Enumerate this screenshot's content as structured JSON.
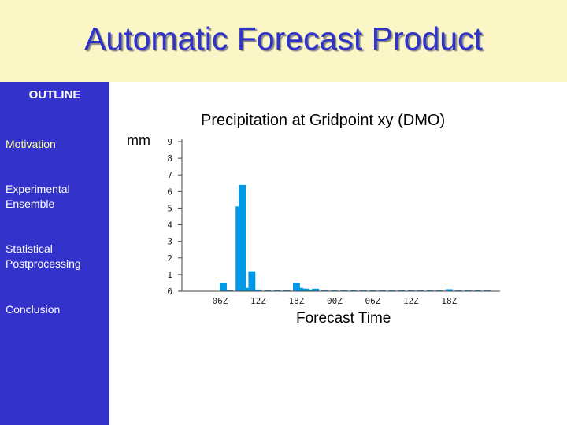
{
  "slide": {
    "title": "Automatic Forecast Product"
  },
  "sidebar": {
    "heading": "OUTLINE",
    "items": [
      {
        "label": "Motivation",
        "active": true
      },
      {
        "label": "Experimental Ensemble",
        "active": false
      },
      {
        "label": "Statistical Postprocessing",
        "active": false
      },
      {
        "label": "Conclusion",
        "active": false
      }
    ]
  },
  "colors": {
    "title_bg": "#fbf6c6",
    "title_text": "#3033c9",
    "sidebar_bg": "#3333cc",
    "active_item": "#ffff99",
    "inactive_item": "#ffffff",
    "bar": "#0099e6"
  },
  "chart_data": {
    "type": "bar",
    "title": "Precipitation at Gridpoint xy (DMO)",
    "ylabel": "mm",
    "xlabel": "Forecast Time",
    "ylim": [
      0,
      9
    ],
    "yticks": [
      0,
      1,
      2,
      3,
      4,
      5,
      6,
      7,
      8,
      9
    ],
    "xticks": [
      "06Z",
      "12Z",
      "18Z",
      "00Z",
      "06Z",
      "12Z",
      "18Z"
    ],
    "x": [
      3,
      6,
      9,
      10,
      11,
      12,
      13,
      15,
      18,
      19,
      20,
      21,
      22,
      24,
      27,
      30,
      33,
      36,
      37,
      38,
      39,
      40,
      42,
      45,
      48,
      51,
      54,
      57,
      60,
      63,
      66,
      69,
      72,
      75,
      78,
      81,
      84,
      87,
      90,
      93,
      96
    ],
    "values": [
      0,
      0,
      0,
      0,
      0,
      0,
      0.5,
      0.05,
      5.1,
      6.4,
      0.2,
      0.05,
      1.2,
      0.1,
      0.05,
      0.05,
      0.05,
      0.5,
      0.2,
      0.15,
      0.15,
      0.1,
      0.15,
      0.05,
      0.05,
      0.05,
      0.05,
      0.05,
      0.05,
      0.05,
      0.05,
      0.05,
      0.05,
      0.05,
      0.05,
      0.05,
      0.12,
      0.05,
      0.05,
      0.05,
      0.05
    ],
    "xlim": [
      0,
      100
    ],
    "grid": false,
    "legend": "none"
  }
}
